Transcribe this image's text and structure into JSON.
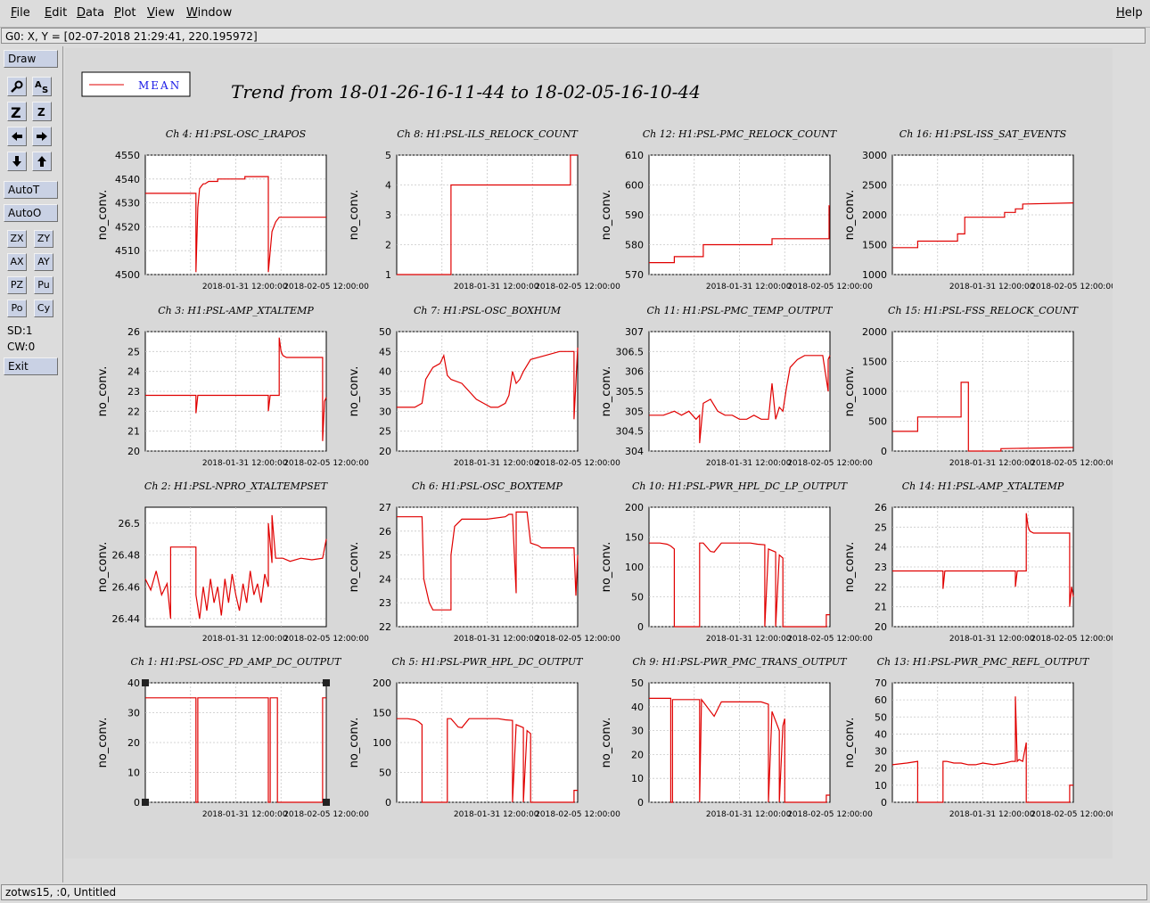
{
  "menu": {
    "items": [
      "File",
      "Edit",
      "Data",
      "Plot",
      "View",
      "Window"
    ],
    "help": "Help"
  },
  "coord_readout": "G0: X, Y = [02-07-2018 21:29:41, 220.195972]",
  "tools": {
    "draw": "Draw",
    "autot": "AutoT",
    "autoo": "AutoO",
    "pairs": [
      [
        "ZX",
        "ZY"
      ],
      [
        "AX",
        "AY"
      ],
      [
        "PZ",
        "Pu"
      ],
      [
        "Po",
        "Cy"
      ]
    ],
    "sd": "SD:1",
    "cw": "CW:0",
    "exit": "Exit"
  },
  "status": "zotws15, :0, Untitled",
  "legend": {
    "label": "MEAN",
    "color": "#e00000"
  },
  "page_title": "Trend from 18-01-26-16-11-44 to 18-02-05-16-10-44",
  "colors": {
    "trace": "#e00000",
    "grid": "#c8c8c8"
  },
  "chart_data": [
    {
      "type": "line",
      "title": "Ch 4: H1:PSL-OSC_LRAPOS",
      "ylabel": "no_conv.",
      "xticks": [
        "2018-01-31 12:00:00",
        "2018-02-05 12:00:00"
      ],
      "ylim": [
        4500,
        4550
      ],
      "yticks": [
        4500,
        4510,
        4520,
        4530,
        4540,
        4550
      ],
      "x": [
        0,
        0.28,
        0.28,
        0.29,
        0.3,
        0.31,
        0.32,
        0.33,
        0.35,
        0.4,
        0.4,
        0.55,
        0.55,
        0.68,
        0.68,
        0.7,
        0.72,
        0.74,
        1.0
      ],
      "y": [
        4534,
        4534,
        4501,
        4528,
        4536,
        4537,
        4538,
        4538,
        4539,
        4539,
        4540,
        4540,
        4541,
        4541,
        4501,
        4518,
        4522,
        4524,
        4524
      ]
    },
    {
      "type": "line",
      "title": "Ch 8: H1:PSL-ILS_RELOCK_COUNT",
      "ylabel": "no_conv.",
      "xticks": [
        "2018-01-31 12:00:00",
        "2018-02-05 12:00:00"
      ],
      "ylim": [
        1,
        5
      ],
      "yticks": [
        1,
        2,
        3,
        4,
        5
      ],
      "x": [
        0,
        0.3,
        0.3,
        0.6,
        0.6,
        0.96,
        0.96,
        1.0
      ],
      "y": [
        1,
        1,
        4,
        4,
        4,
        4,
        5,
        5
      ]
    },
    {
      "type": "line",
      "title": "Ch 12: H1:PSL-PMC_RELOCK_COUNT",
      "ylabel": "no_conv.",
      "xticks": [
        "2018-01-31 12:00:00",
        "2018-02-05 12:00:00"
      ],
      "ylim": [
        570,
        610
      ],
      "yticks": [
        570,
        580,
        590,
        600,
        610
      ],
      "x": [
        0,
        0.14,
        0.14,
        0.3,
        0.3,
        0.68,
        0.68,
        0.995,
        0.995,
        1.0
      ],
      "y": [
        574,
        574,
        576,
        576,
        580,
        580,
        582,
        582,
        593,
        593
      ]
    },
    {
      "type": "line",
      "title": "Ch 16: H1:PSL-ISS_SAT_EVENTS",
      "ylabel": "no_conv.",
      "xticks": [
        "2018-01-31 12:00:00",
        "2018-02-05 12:00:00"
      ],
      "ylim": [
        1000,
        3000
      ],
      "yticks": [
        1000,
        1500,
        2000,
        2500,
        3000
      ],
      "x": [
        0,
        0.14,
        0.14,
        0.36,
        0.36,
        0.4,
        0.4,
        0.62,
        0.62,
        0.68,
        0.68,
        0.72,
        0.72,
        1.0
      ],
      "y": [
        1450,
        1450,
        1560,
        1560,
        1680,
        1680,
        1960,
        1960,
        2040,
        2040,
        2100,
        2100,
        2180,
        2200
      ]
    },
    {
      "type": "line",
      "title": "Ch 3: H1:PSL-AMP_XTALTEMP",
      "ylabel": "no_conv.",
      "xticks": [
        "2018-01-31 12:00:00",
        "2018-02-05 12:00:00"
      ],
      "ylim": [
        20,
        26
      ],
      "yticks": [
        20,
        21,
        22,
        23,
        24,
        25,
        26
      ],
      "x": [
        0,
        0.28,
        0.28,
        0.29,
        0.68,
        0.68,
        0.69,
        0.74,
        0.74,
        0.75,
        0.76,
        0.78,
        0.82,
        0.98,
        0.98,
        0.99,
        1.0
      ],
      "y": [
        22.8,
        22.8,
        21.9,
        22.8,
        22.8,
        22.0,
        22.8,
        22.8,
        25.7,
        25.0,
        24.8,
        24.7,
        24.7,
        24.7,
        20.5,
        22.5,
        22.7
      ]
    },
    {
      "type": "line",
      "title": "Ch 7: H1:PSL-OSC_BOXHUM",
      "ylabel": "no_conv.",
      "xticks": [
        "2018-01-31 12:00:00",
        "2018-02-05 12:00:00"
      ],
      "ylim": [
        20,
        50
      ],
      "yticks": [
        20,
        25,
        30,
        35,
        40,
        45,
        50
      ],
      "x": [
        0,
        0.1,
        0.14,
        0.16,
        0.2,
        0.24,
        0.26,
        0.28,
        0.3,
        0.36,
        0.44,
        0.48,
        0.52,
        0.56,
        0.6,
        0.62,
        0.64,
        0.66,
        0.68,
        0.7,
        0.74,
        0.82,
        0.9,
        0.98,
        0.98,
        1.0
      ],
      "y": [
        31,
        31,
        32,
        38,
        41,
        42,
        44,
        39,
        38,
        37,
        33,
        32,
        31,
        31,
        32,
        34,
        40,
        37,
        38,
        40,
        43,
        44,
        45,
        45,
        28,
        46
      ]
    },
    {
      "type": "line",
      "title": "Ch 11: H1:PSL-PMC_TEMP_OUTPUT",
      "ylabel": "no_conv.",
      "xticks": [
        "2018-01-31 12:00:00",
        "2018-02-05 12:00:00"
      ],
      "ylim": [
        304,
        307
      ],
      "yticks": [
        304,
        304.5,
        305,
        305.5,
        306,
        306.5,
        307
      ],
      "x": [
        0,
        0.08,
        0.14,
        0.18,
        0.22,
        0.26,
        0.28,
        0.28,
        0.3,
        0.34,
        0.38,
        0.42,
        0.46,
        0.5,
        0.54,
        0.58,
        0.62,
        0.66,
        0.68,
        0.7,
        0.72,
        0.74,
        0.76,
        0.78,
        0.82,
        0.86,
        0.9,
        0.96,
        0.99,
        0.99,
        1.0
      ],
      "y": [
        304.9,
        304.9,
        305.0,
        304.9,
        305.0,
        304.8,
        304.9,
        304.2,
        305.2,
        305.3,
        305.0,
        304.9,
        304.9,
        304.8,
        304.8,
        304.9,
        304.8,
        304.8,
        305.7,
        304.8,
        305.1,
        305.0,
        305.6,
        306.1,
        306.3,
        306.4,
        306.4,
        306.4,
        305.5,
        306.3,
        306.4
      ]
    },
    {
      "type": "line",
      "title": "Ch 15: H1:PSL-FSS_RELOCK_COUNT",
      "ylabel": "no_conv.",
      "xticks": [
        "2018-01-31 12:00:00",
        "2018-02-05 12:00:00"
      ],
      "ylim": [
        0,
        2000
      ],
      "yticks": [
        0,
        500,
        1000,
        1500,
        2000
      ],
      "x": [
        0,
        0.14,
        0.14,
        0.38,
        0.38,
        0.4,
        0.4,
        0.42,
        0.42,
        0.6,
        0.6,
        1.0
      ],
      "y": [
        330,
        330,
        570,
        570,
        1150,
        1150,
        1150,
        1150,
        0,
        0,
        40,
        60
      ]
    },
    {
      "type": "line",
      "title": "Ch 2: H1:PSL-NPRO_XTALTEMPSET",
      "ylabel": "no_conv.",
      "xticks": [
        "2018-01-31 12:00:00",
        "2018-02-05 12:00:00"
      ],
      "ylim": [
        26.435,
        26.51
      ],
      "yticks": [
        26.44,
        26.46,
        26.48,
        26.5
      ],
      "x": [
        0,
        0.03,
        0.06,
        0.09,
        0.12,
        0.14,
        0.14,
        0.28,
        0.28,
        0.3,
        0.32,
        0.34,
        0.36,
        0.38,
        0.4,
        0.42,
        0.44,
        0.46,
        0.48,
        0.5,
        0.52,
        0.54,
        0.56,
        0.58,
        0.6,
        0.62,
        0.64,
        0.66,
        0.68,
        0.68,
        0.7,
        0.7,
        0.72,
        0.76,
        0.8,
        0.86,
        0.92,
        0.98,
        1.0
      ],
      "y": [
        26.465,
        26.458,
        26.47,
        26.455,
        26.462,
        26.44,
        26.485,
        26.485,
        26.455,
        26.44,
        26.46,
        26.445,
        26.465,
        26.45,
        26.46,
        26.442,
        26.465,
        26.45,
        26.468,
        26.455,
        26.445,
        26.462,
        26.45,
        26.47,
        26.455,
        26.462,
        26.45,
        26.468,
        26.46,
        26.5,
        26.475,
        26.505,
        26.478,
        26.478,
        26.476,
        26.478,
        26.477,
        26.478,
        26.49
      ]
    },
    {
      "type": "line",
      "title": "Ch 6: H1:PSL-OSC_BOXTEMP",
      "ylabel": "no_conv.",
      "xticks": [
        "2018-01-31 12:00:00",
        "2018-02-05 12:00:00"
      ],
      "ylim": [
        22,
        27
      ],
      "yticks": [
        22,
        23,
        24,
        25,
        26,
        27
      ],
      "x": [
        0,
        0.14,
        0.15,
        0.18,
        0.2,
        0.22,
        0.3,
        0.3,
        0.32,
        0.36,
        0.4,
        0.5,
        0.6,
        0.62,
        0.64,
        0.66,
        0.66,
        0.68,
        0.72,
        0.74,
        0.78,
        0.8,
        0.86,
        0.9,
        0.96,
        0.98,
        0.99,
        1.0
      ],
      "y": [
        26.6,
        26.6,
        24.0,
        23.0,
        22.7,
        22.7,
        22.7,
        25.0,
        26.2,
        26.5,
        26.5,
        26.5,
        26.6,
        26.7,
        26.7,
        23.4,
        26.8,
        26.8,
        26.8,
        25.5,
        25.4,
        25.3,
        25.3,
        25.3,
        25.3,
        25.3,
        23.3,
        25.0
      ]
    },
    {
      "type": "line",
      "title": "Ch 10: H1:PSL-PWR_HPL_DC_LP_OUTPUT",
      "ylabel": "no_conv.",
      "xticks": [
        "2018-01-31 12:00:00",
        "2018-02-05 12:00:00"
      ],
      "ylim": [
        0,
        200
      ],
      "yticks": [
        0,
        50,
        100,
        150,
        200
      ],
      "x": [
        0,
        0.06,
        0.1,
        0.12,
        0.14,
        0.14,
        0.28,
        0.28,
        0.3,
        0.34,
        0.36,
        0.4,
        0.5,
        0.56,
        0.6,
        0.64,
        0.64,
        0.66,
        0.7,
        0.7,
        0.72,
        0.74,
        0.74,
        0.76,
        0.98,
        0.98,
        1.0
      ],
      "y": [
        140,
        140,
        138,
        135,
        130,
        0,
        0,
        140,
        140,
        126,
        125,
        140,
        140,
        140,
        138,
        137,
        0,
        130,
        125,
        0,
        120,
        115,
        0,
        0,
        0,
        20,
        20
      ]
    },
    {
      "type": "line",
      "title": "Ch 14: H1:PSL-AMP_XTALTEMP",
      "ylabel": "no_conv.",
      "xticks": [
        "2018-01-31 12:00:00",
        "2018-02-05 12:00:00"
      ],
      "ylim": [
        20,
        26
      ],
      "yticks": [
        20,
        21,
        22,
        23,
        24,
        25,
        26
      ],
      "x": [
        0,
        0.28,
        0.28,
        0.29,
        0.68,
        0.68,
        0.69,
        0.74,
        0.74,
        0.75,
        0.76,
        0.78,
        0.82,
        0.98,
        0.98,
        0.99,
        1.0
      ],
      "y": [
        22.8,
        22.8,
        21.9,
        22.8,
        22.8,
        22.0,
        22.8,
        22.8,
        25.7,
        25.0,
        24.8,
        24.7,
        24.7,
        24.7,
        21.0,
        22.0,
        21.5
      ]
    },
    {
      "type": "line",
      "title": "Ch 1: H1:PSL-OSC_PD_AMP_DC_OUTPUT",
      "ylabel": "no_conv.",
      "xticks": [
        "2018-01-31 12:00:00",
        "2018-02-05 12:00:00"
      ],
      "ylim": [
        0,
        40
      ],
      "yticks": [
        0,
        10,
        20,
        30,
        40
      ],
      "x": [
        0,
        0.28,
        0.28,
        0.29,
        0.29,
        0.68,
        0.68,
        0.69,
        0.69,
        0.73,
        0.73,
        0.74,
        0.98,
        0.98,
        1.0
      ],
      "y": [
        35,
        35,
        0,
        0,
        35,
        35,
        0,
        0,
        35,
        35,
        0,
        0,
        0,
        35,
        35
      ]
    },
    {
      "type": "line",
      "title": "Ch 5: H1:PSL-PWR_HPL_DC_OUTPUT",
      "ylabel": "no_conv.",
      "xticks": [
        "2018-01-31 12:00:00",
        "2018-02-05 12:00:00"
      ],
      "ylim": [
        0,
        200
      ],
      "yticks": [
        0,
        50,
        100,
        150,
        200
      ],
      "x": [
        0,
        0.06,
        0.1,
        0.12,
        0.14,
        0.14,
        0.28,
        0.28,
        0.3,
        0.34,
        0.36,
        0.4,
        0.5,
        0.56,
        0.6,
        0.64,
        0.64,
        0.66,
        0.7,
        0.7,
        0.72,
        0.74,
        0.74,
        0.76,
        0.98,
        0.98,
        1.0
      ],
      "y": [
        140,
        140,
        138,
        135,
        130,
        0,
        0,
        140,
        140,
        126,
        125,
        140,
        140,
        140,
        138,
        137,
        0,
        130,
        125,
        0,
        120,
        115,
        0,
        0,
        0,
        20,
        20
      ]
    },
    {
      "type": "line",
      "title": "Ch 9: H1:PSL-PWR_PMC_TRANS_OUTPUT",
      "ylabel": "no_conv.",
      "xticks": [
        "2018-01-31 12:00:00",
        "2018-02-05 12:00:00"
      ],
      "ylim": [
        0,
        50
      ],
      "yticks": [
        0,
        10,
        20,
        30,
        40,
        50
      ],
      "x": [
        0,
        0.12,
        0.12,
        0.13,
        0.13,
        0.28,
        0.28,
        0.29,
        0.3,
        0.34,
        0.36,
        0.4,
        0.46,
        0.56,
        0.62,
        0.66,
        0.66,
        0.68,
        0.72,
        0.72,
        0.74,
        0.75,
        0.75,
        0.98,
        0.98,
        1.0
      ],
      "y": [
        43.5,
        43.5,
        0,
        0,
        43,
        43,
        0,
        43,
        42,
        38,
        36,
        42,
        42,
        42,
        42,
        41,
        0,
        38,
        30,
        0,
        32,
        35,
        0,
        0,
        3,
        3
      ]
    },
    {
      "type": "line",
      "title": "Ch 13: H1:PSL-PWR_PMC_REFL_OUTPUT",
      "ylabel": "no_conv.",
      "xticks": [
        "2018-01-31 12:00:00",
        "2018-02-05 12:00:00"
      ],
      "ylim": [
        0,
        70
      ],
      "yticks": [
        0,
        10,
        20,
        30,
        40,
        50,
        60,
        70
      ],
      "x": [
        0,
        0.08,
        0.14,
        0.14,
        0.28,
        0.28,
        0.3,
        0.34,
        0.38,
        0.42,
        0.46,
        0.5,
        0.56,
        0.62,
        0.66,
        0.68,
        0.68,
        0.69,
        0.7,
        0.72,
        0.74,
        0.74,
        0.75,
        0.98,
        0.98,
        1.0
      ],
      "y": [
        22,
        23,
        24,
        0,
        0,
        24,
        24,
        23,
        23,
        22,
        22,
        23,
        22,
        23,
        24,
        24,
        62,
        24,
        25,
        24,
        35,
        0,
        0,
        0,
        10,
        10
      ]
    }
  ]
}
